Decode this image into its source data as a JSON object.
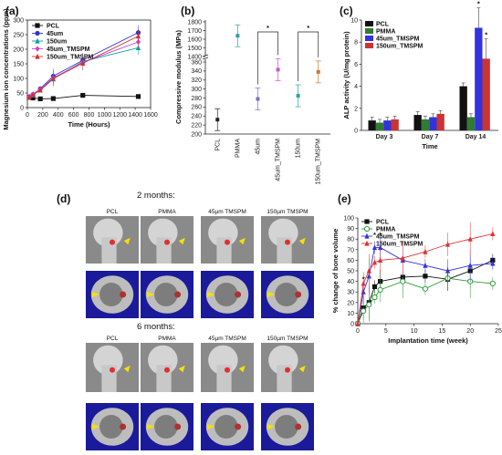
{
  "chart_data": [
    {
      "panel": "(a)",
      "type": "line",
      "xlabel": "Time (Hours)",
      "ylabel": "Magnesium ion concentrations (ppm)",
      "xlim": [
        0,
        1600
      ],
      "ylim": [
        0,
        300
      ],
      "xticks": [
        "0",
        "200",
        "400",
        "600",
        "800",
        "1000",
        "1200",
        "1400",
        "1600"
      ],
      "yticks": [
        "0",
        "50",
        "100",
        "150",
        "200",
        "250",
        "300"
      ],
      "legend_position": "top-left",
      "x": [
        24,
        72,
        168,
        336,
        720,
        1440
      ],
      "series": [
        {
          "name": "PCL",
          "color": "#111111",
          "marker": "square",
          "values": [
            35,
            33,
            30,
            31,
            42,
            38
          ]
        },
        {
          "name": "45um",
          "color": "#3333cc",
          "marker": "circle",
          "values": [
            37,
            45,
            65,
            108,
            162,
            257
          ]
        },
        {
          "name": "150um",
          "color": "#00a0a0",
          "marker": "triangle",
          "values": [
            36,
            43,
            60,
            98,
            158,
            205
          ]
        },
        {
          "name": "45um_TMSPM",
          "color": "#cc44cc",
          "marker": "diamond",
          "values": [
            38,
            46,
            63,
            102,
            155,
            225
          ]
        },
        {
          "name": "150um_TMSPM",
          "color": "#cc3333",
          "marker": "triangle",
          "values": [
            36,
            44,
            60,
            100,
            152,
            245
          ]
        }
      ]
    },
    {
      "panel": "(b)",
      "type": "scatter",
      "ylabel": "Compressive modulus (MPa)",
      "yticks": [
        "200",
        "220",
        "240",
        "260",
        "280",
        "300",
        "320",
        "340",
        "360",
        "1400",
        "1500",
        "1600",
        "1700",
        "1800"
      ],
      "categories": [
        "PCL",
        "PMMA",
        "45um",
        "45um_TMSPM",
        "150um",
        "150um_TMSPM"
      ],
      "values": [
        232,
        1640,
        278,
        343,
        285,
        338
      ],
      "colors": [
        "#222222",
        "#2aa3a3",
        "#7a6bd6",
        "#cc55cc",
        "#2aa3a3",
        "#cc7733"
      ],
      "significance": [
        "*",
        "*"
      ]
    },
    {
      "panel": "(c)",
      "type": "bar",
      "xlabel": "Time",
      "ylabel": "ALP activity (U/mg protein)",
      "ylim": [
        0,
        10
      ],
      "yticks": [
        "0",
        "2",
        "4",
        "6",
        "8",
        "10"
      ],
      "legend_position": "top-left",
      "categories": [
        "Day 3",
        "Day 7",
        "Day 14"
      ],
      "series": [
        {
          "name": "PCL",
          "color": "#111111",
          "values": [
            0.9,
            1.4,
            4.0
          ]
        },
        {
          "name": "PMMA",
          "color": "#2e7d32",
          "values": [
            0.7,
            1.0,
            1.2
          ]
        },
        {
          "name": "45um_TMSPM",
          "color": "#3333dd",
          "values": [
            0.9,
            1.2,
            9.3
          ]
        },
        {
          "name": "150um_TMSPM",
          "color": "#cc3333",
          "values": [
            1.0,
            1.5,
            6.5
          ]
        }
      ],
      "significance": [
        "*",
        "*"
      ]
    },
    {
      "panel": "(d)",
      "type": "table",
      "headings": [
        "2 months:",
        "6 months:"
      ],
      "columns": [
        "PCL",
        "PMMA",
        "45µm TMSPM",
        "150µm TMSPM"
      ]
    },
    {
      "panel": "(e)",
      "type": "line",
      "xlabel": "Implantation time (week)",
      "ylabel": "% change of bone volume",
      "xlim": [
        0,
        25
      ],
      "ylim": [
        0,
        100
      ],
      "xticks": [
        "0",
        "5",
        "10",
        "15",
        "20",
        "25"
      ],
      "yticks": [
        "0",
        "10",
        "20",
        "30",
        "40",
        "50",
        "60",
        "70",
        "80",
        "90",
        "100"
      ],
      "legend_position": "top-left",
      "significance": [
        "*",
        "*",
        "*"
      ],
      "series": [
        {
          "name": "PCL",
          "color": "#111111",
          "marker": "square",
          "x": [
            0,
            1,
            2,
            3,
            4,
            8,
            12,
            16,
            20,
            24
          ],
          "values": [
            0,
            15,
            20,
            35,
            40,
            44,
            45,
            42,
            50,
            60
          ]
        },
        {
          "name": "PMMA",
          "color": "#2e9a3a",
          "marker": "circle-open",
          "x": [
            0,
            1,
            2,
            3,
            4,
            8,
            12,
            16,
            20,
            24
          ],
          "values": [
            0,
            12,
            18,
            25,
            32,
            40,
            33,
            43,
            40,
            38
          ]
        },
        {
          "name": "45um_TMSPM",
          "color": "#3333dd",
          "marker": "triangle",
          "x": [
            0,
            1,
            2,
            3,
            4,
            8,
            12,
            16,
            20,
            24
          ],
          "values": [
            0,
            30,
            45,
            72,
            72,
            60,
            55,
            50,
            55,
            57
          ]
        },
        {
          "name": "150um_TMSPM",
          "color": "#dd3333",
          "marker": "triangle",
          "x": [
            0,
            1,
            2,
            3,
            4,
            8,
            12,
            16,
            20,
            24
          ],
          "values": [
            0,
            38,
            50,
            58,
            60,
            62,
            68,
            75,
            80,
            85
          ]
        }
      ]
    }
  ]
}
